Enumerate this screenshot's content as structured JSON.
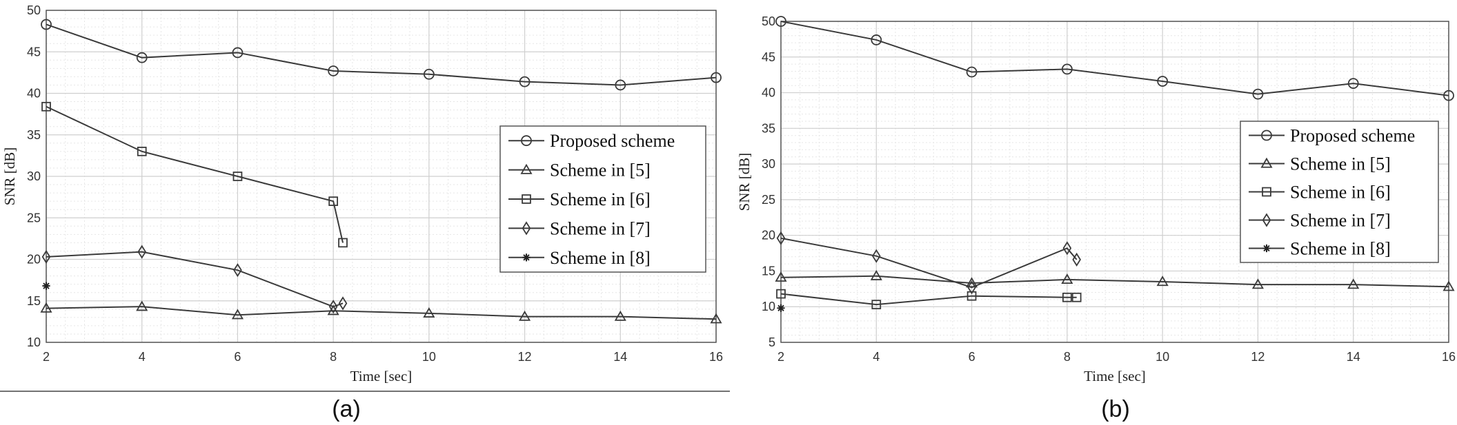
{
  "chart_data": [
    {
      "type": "line",
      "panel_label": "(a)",
      "xlabel": "Time [sec]",
      "ylabel": "SNR [dB]",
      "xlim": [
        2,
        16
      ],
      "ylim": [
        10,
        50
      ],
      "xticks": [
        2,
        4,
        6,
        8,
        10,
        12,
        14,
        16
      ],
      "yticks": [
        10,
        15,
        20,
        25,
        30,
        35,
        40,
        45,
        50
      ],
      "grid": true,
      "legend_position": "right",
      "series": [
        {
          "name": "Proposed scheme",
          "marker": "circle",
          "x": [
            2,
            4,
            6,
            8,
            10,
            12,
            14,
            16
          ],
          "y": [
            48.3,
            44.3,
            44.9,
            42.7,
            42.3,
            41.4,
            41.0,
            41.9
          ]
        },
        {
          "name": "Scheme in [5]",
          "marker": "triangle",
          "x": [
            2,
            4,
            6,
            8,
            10,
            12,
            14,
            16
          ],
          "y": [
            14.1,
            14.3,
            13.3,
            13.8,
            13.5,
            13.1,
            13.1,
            12.8
          ]
        },
        {
          "name": "Scheme in [6]",
          "marker": "square",
          "x": [
            2,
            4,
            6,
            8,
            8.2
          ],
          "y": [
            38.4,
            33.0,
            30.0,
            27.0,
            22.0
          ]
        },
        {
          "name": "Scheme in [7]",
          "marker": "diamond",
          "x": [
            2,
            4,
            6,
            8,
            8.2
          ],
          "y": [
            20.3,
            20.9,
            18.7,
            14.3,
            14.7
          ]
        },
        {
          "name": "Scheme in [8]",
          "marker": "asterisk",
          "x": [
            2
          ],
          "y": [
            16.8
          ]
        }
      ]
    },
    {
      "type": "line",
      "panel_label": "(b)",
      "xlabel": "Time [sec]",
      "ylabel": "SNR [dB]",
      "xlim": [
        2,
        16
      ],
      "ylim": [
        5,
        50
      ],
      "xticks": [
        2,
        4,
        6,
        8,
        10,
        12,
        14,
        16
      ],
      "yticks": [
        5,
        10,
        15,
        20,
        25,
        30,
        35,
        40,
        45,
        50
      ],
      "grid": true,
      "legend_position": "right",
      "series": [
        {
          "name": "Proposed scheme",
          "marker": "circle",
          "x": [
            2,
            4,
            6,
            8,
            10,
            12,
            14,
            16
          ],
          "y": [
            50.0,
            47.4,
            42.9,
            43.3,
            41.6,
            39.8,
            41.3,
            39.6
          ]
        },
        {
          "name": "Scheme in [5]",
          "marker": "triangle",
          "x": [
            2,
            4,
            6,
            8,
            10,
            12,
            14,
            16
          ],
          "y": [
            14.1,
            14.3,
            13.3,
            13.8,
            13.5,
            13.1,
            13.1,
            12.8
          ]
        },
        {
          "name": "Scheme in [6]",
          "marker": "square",
          "x": [
            2,
            4,
            6,
            8,
            8.2
          ],
          "y": [
            11.8,
            10.3,
            11.5,
            11.3,
            11.3
          ]
        },
        {
          "name": "Scheme in [7]",
          "marker": "diamond",
          "x": [
            2,
            4,
            6,
            8,
            8.2
          ],
          "y": [
            19.6,
            17.1,
            12.7,
            18.2,
            16.6
          ]
        },
        {
          "name": "Scheme in [8]",
          "marker": "asterisk",
          "x": [
            2
          ],
          "y": [
            9.8
          ]
        }
      ]
    }
  ]
}
